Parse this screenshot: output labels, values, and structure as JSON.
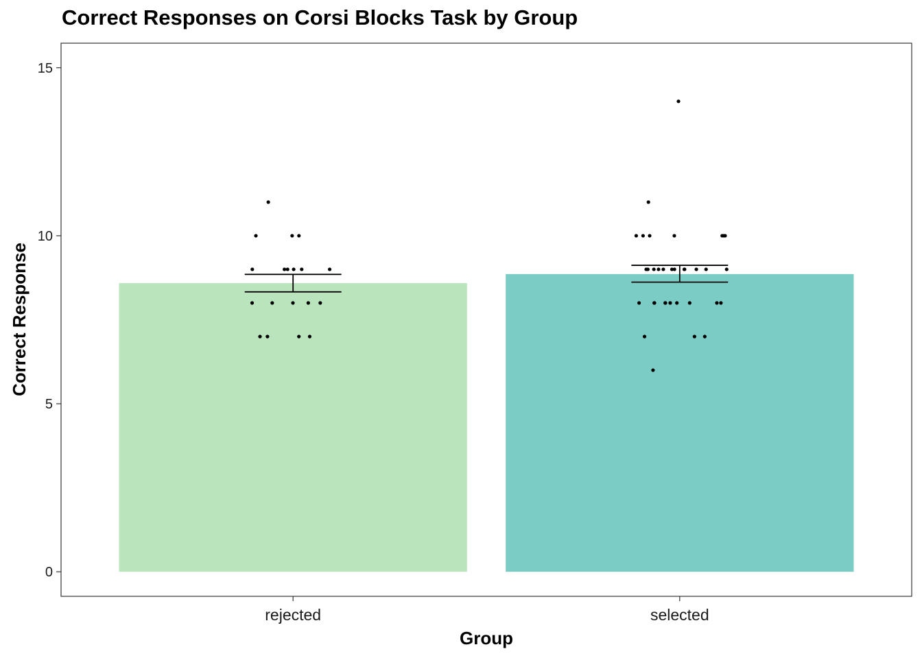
{
  "chart_data": {
    "type": "bar",
    "title": "Correct Responses on Corsi Blocks Task by Group",
    "xlabel": "Group",
    "ylabel": "Correct Response",
    "categories": [
      "rejected",
      "selected"
    ],
    "values": [
      8.59,
      8.86
    ],
    "error_bars": [
      {
        "low": 8.33,
        "high": 8.85
      },
      {
        "low": 8.62,
        "high": 9.12
      }
    ],
    "bar_colors": [
      "#bae4bc",
      "#7bccc4"
    ],
    "points": [
      [
        10,
        10,
        10,
        11,
        9,
        9,
        9,
        9,
        9,
        9,
        8,
        8,
        8,
        8,
        8,
        7,
        7,
        7,
        7
      ],
      [
        14,
        11,
        10,
        10,
        10,
        10,
        10,
        10,
        10,
        9,
        9,
        9,
        9,
        9,
        9,
        9,
        9,
        9,
        9,
        9,
        9,
        8,
        8,
        8,
        8,
        8,
        8,
        8,
        8,
        8,
        8,
        7,
        7,
        7,
        6
      ]
    ],
    "yticks": [
      0,
      5,
      10,
      15
    ],
    "ylim": [
      -0.73,
      15.73
    ],
    "grid": false,
    "legend": "none"
  }
}
